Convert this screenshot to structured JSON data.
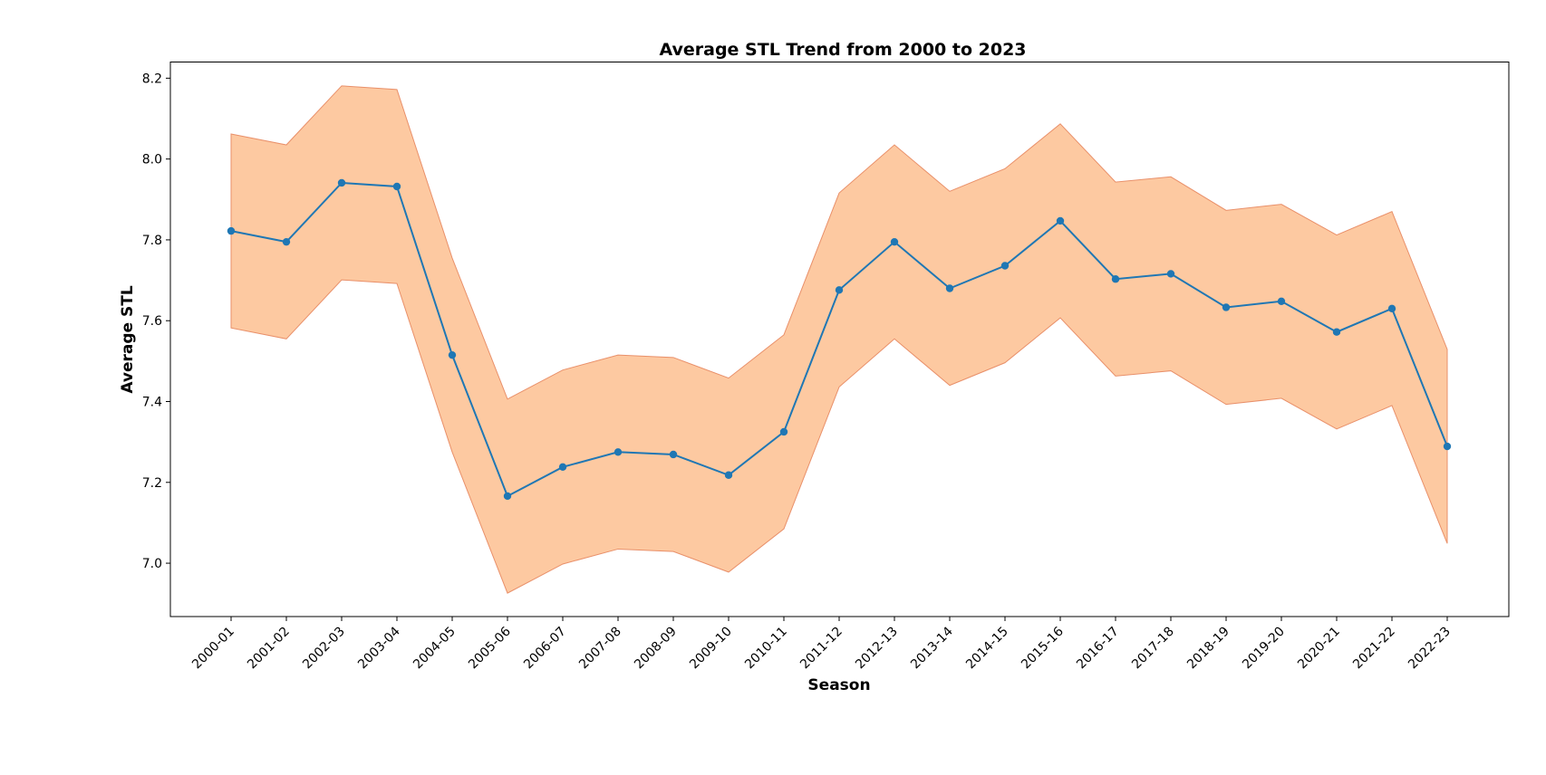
{
  "chart_data": {
    "type": "line",
    "title": "Average STL Trend from 2000 to 2023",
    "xlabel": "Season",
    "ylabel": "Average STL",
    "categories": [
      "2000-01",
      "2001-02",
      "2002-03",
      "2003-04",
      "2004-05",
      "2005-06",
      "2006-07",
      "2007-08",
      "2008-09",
      "2009-10",
      "2010-11",
      "2011-12",
      "2012-13",
      "2013-14",
      "2014-15",
      "2015-16",
      "2016-17",
      "2017-18",
      "2018-19",
      "2019-20",
      "2020-21",
      "2021-22",
      "2022-23"
    ],
    "series": [
      {
        "values": [
          7.822,
          7.795,
          7.941,
          7.932,
          7.515,
          7.166,
          7.238,
          7.275,
          7.269,
          7.218,
          7.325,
          7.676,
          7.795,
          7.68,
          7.736,
          7.847,
          7.703,
          7.716,
          7.633,
          7.648,
          7.572,
          7.63,
          7.289
        ],
        "color": "#1f77b4",
        "marker": "circle"
      }
    ],
    "band": {
      "lower": [
        7.582,
        7.555,
        7.701,
        7.692,
        7.275,
        6.926,
        6.998,
        7.035,
        7.029,
        6.978,
        7.085,
        7.436,
        7.555,
        7.44,
        7.496,
        7.607,
        7.463,
        7.476,
        7.393,
        7.408,
        7.332,
        7.39,
        7.049
      ],
      "upper": [
        8.062,
        8.035,
        8.181,
        8.172,
        7.755,
        7.406,
        7.478,
        7.515,
        7.509,
        7.458,
        7.565,
        7.916,
        8.035,
        7.92,
        7.976,
        8.087,
        7.943,
        7.956,
        7.873,
        7.888,
        7.812,
        7.87,
        7.529
      ],
      "fill_color": "#fdc9a1",
      "edge_color": "#e9906a"
    },
    "yticks": [
      7.0,
      7.2,
      7.4,
      7.6,
      7.8,
      8.0,
      8.2
    ],
    "ylim": [
      6.868,
      8.24
    ],
    "grid": false,
    "legend": false
  }
}
